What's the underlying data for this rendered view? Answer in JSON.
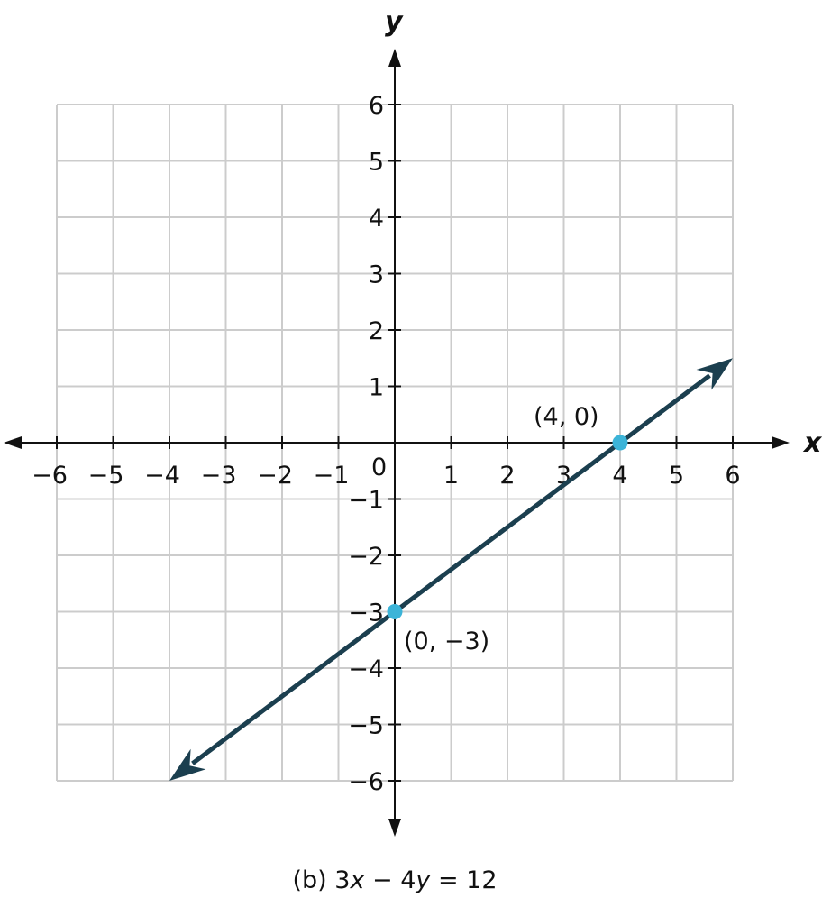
{
  "chart_data": {
    "type": "line",
    "xlabel": "x",
    "ylabel": "y",
    "xlim": [
      -6,
      6
    ],
    "ylim": [
      -6,
      6
    ],
    "grid": true,
    "x_ticks": [
      "−6",
      "−5",
      "−4",
      "−3",
      "−2",
      "−1",
      "1",
      "2",
      "3",
      "4",
      "5",
      "6"
    ],
    "y_ticks": [
      "6",
      "5",
      "4",
      "3",
      "2",
      "1",
      "−1",
      "−2",
      "−3",
      "−4",
      "−5",
      "−6"
    ],
    "origin_label": "0",
    "line": {
      "equation": "3x − 4y = 12",
      "from": [
        -4,
        -6
      ],
      "to": [
        6,
        1.5
      ],
      "color": "#1b3f4f"
    },
    "points": [
      {
        "x": 0,
        "y": -3,
        "label": "(0, −3)"
      },
      {
        "x": 4,
        "y": 0,
        "label": "(4, 0)"
      }
    ],
    "point_color": "#3cb4d8",
    "grid_color": "#cccccc",
    "caption": {
      "prefix": "(b) 3",
      "v1": "x",
      "mid": " − 4",
      "v2": "y",
      "suffix": " = 12"
    }
  }
}
